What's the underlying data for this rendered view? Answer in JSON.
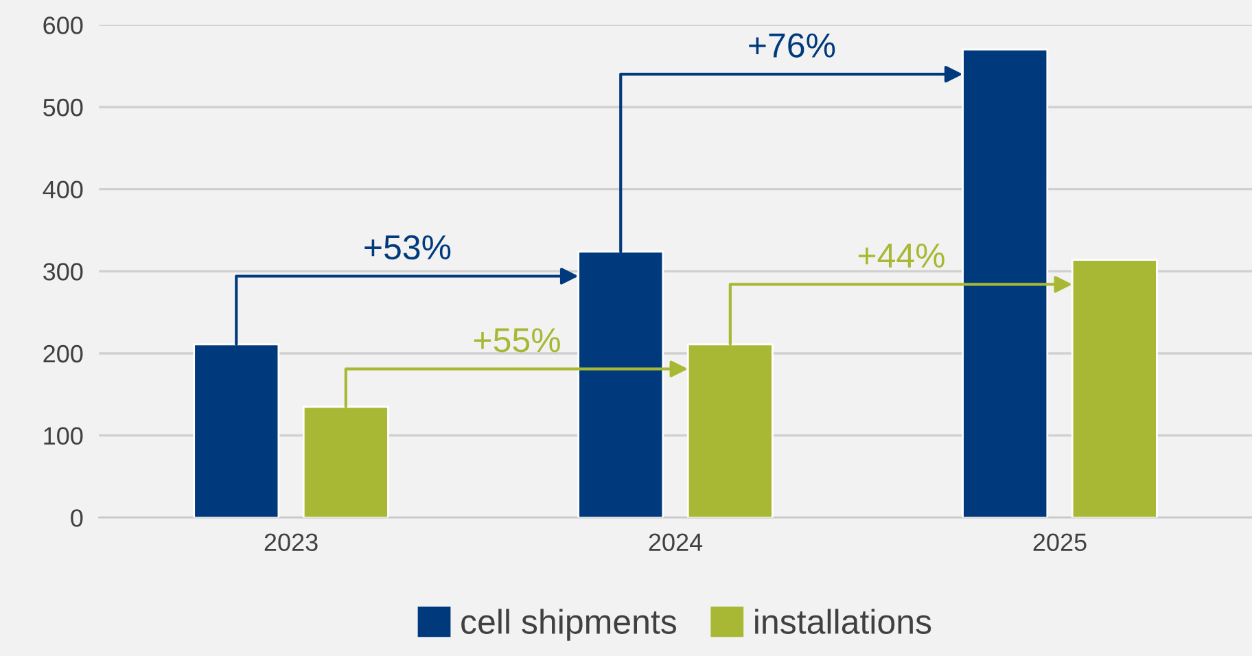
{
  "chart_data": {
    "type": "bar",
    "categories": [
      "2023",
      "2024",
      "2025"
    ],
    "series": [
      {
        "name": "cell shipments",
        "color": "#003a7d",
        "values": [
          211,
          324,
          570
        ]
      },
      {
        "name": "installations",
        "color": "#a9b834",
        "values": [
          135,
          211,
          314
        ]
      }
    ],
    "ylim": [
      0,
      600
    ],
    "yticks": [
      0,
      100,
      200,
      300,
      400,
      500,
      600
    ],
    "grid": "y",
    "legend": "bottom",
    "annotations": [
      "+53%",
      "+55%",
      "+76%",
      "+44%"
    ]
  }
}
